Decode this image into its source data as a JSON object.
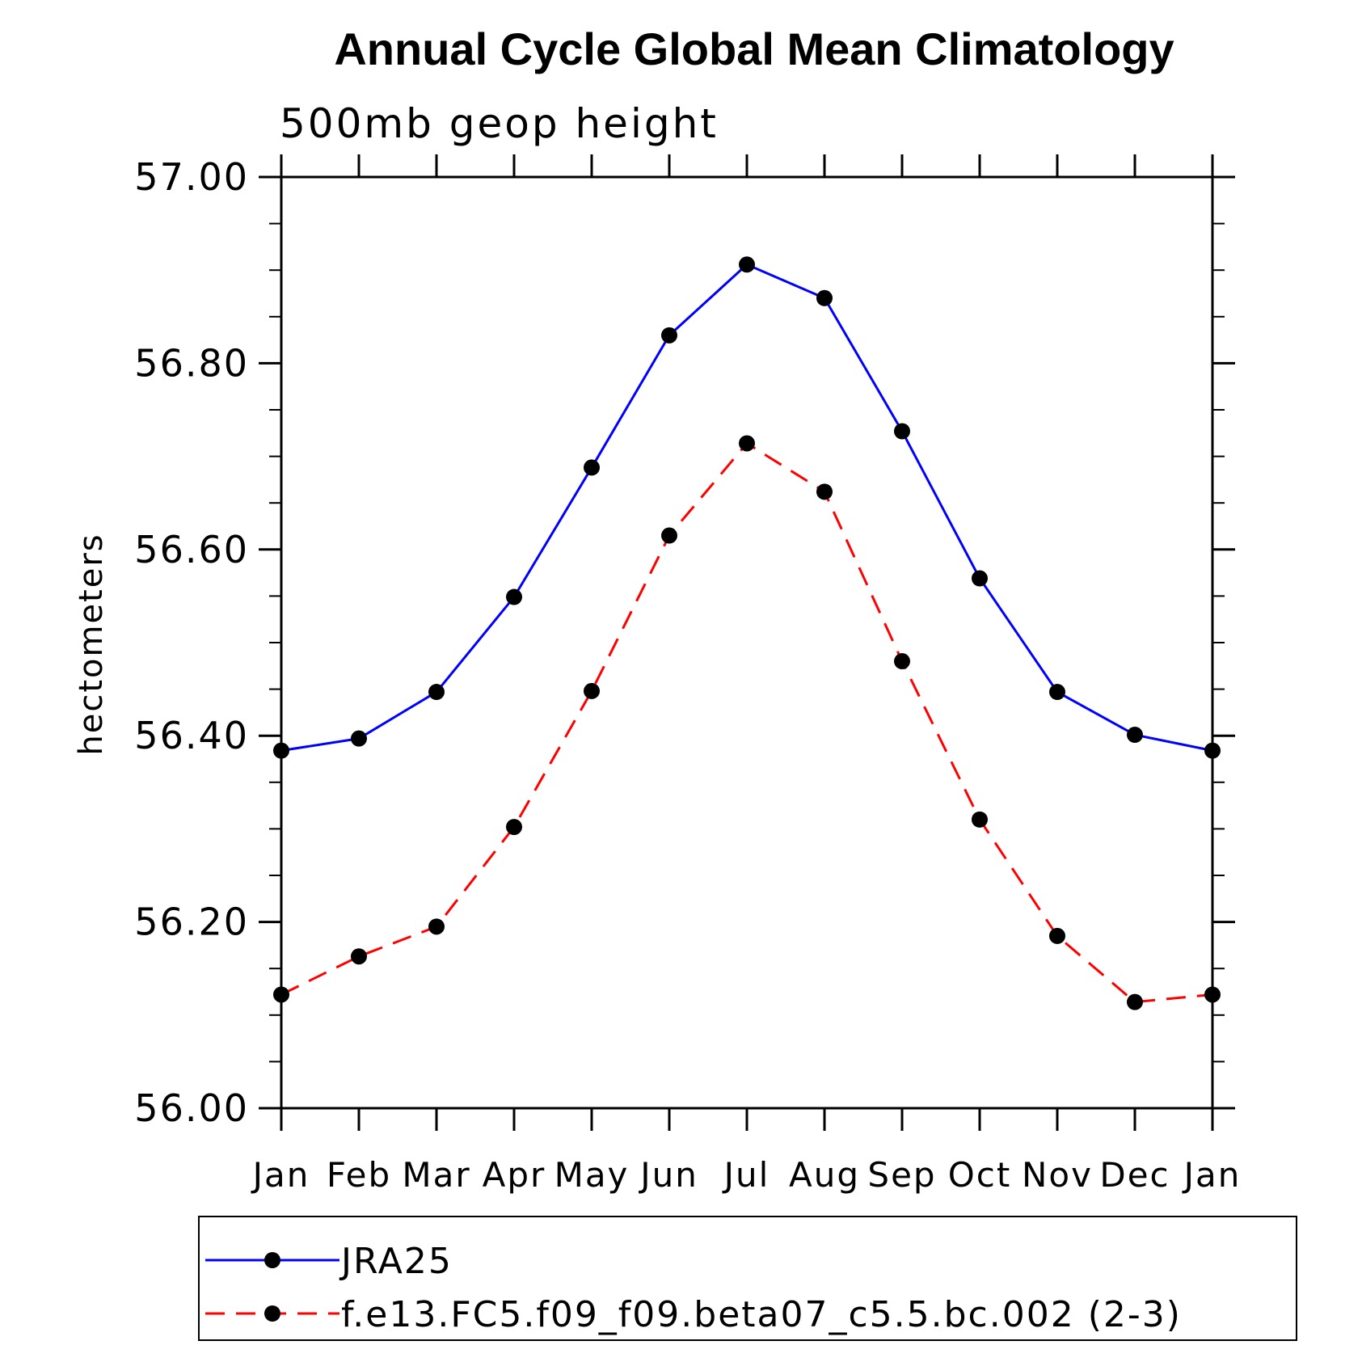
{
  "chart_data": {
    "type": "line",
    "title": "Annual Cycle Global Mean Climatology",
    "subtitle": "500mb geop height",
    "ylabel": "hectometers",
    "xlabel": "",
    "categories": [
      "Jan",
      "Feb",
      "Mar",
      "Apr",
      "May",
      "Jun",
      "Jul",
      "Aug",
      "Sep",
      "Oct",
      "Nov",
      "Dec",
      "Jan"
    ],
    "ylim": [
      56.0,
      57.0
    ],
    "yticks": [
      "56.00",
      "56.20",
      "56.40",
      "56.60",
      "56.80",
      "57.00"
    ],
    "grid": false,
    "legend_position": "bottom",
    "series": [
      {
        "name": "JRA25",
        "color": "#0000ff",
        "dash": "solid",
        "values": [
          56.384,
          56.397,
          56.447,
          56.549,
          56.688,
          56.83,
          56.906,
          56.87,
          56.727,
          56.569,
          56.447,
          56.401,
          56.384
        ]
      },
      {
        "name": "f.e13.FC5.f09_f09.beta07_c5.5.bc.002 (2-3)",
        "color": "#ff0000",
        "dash": "dashed",
        "values": [
          56.122,
          56.163,
          56.195,
          56.302,
          56.448,
          56.615,
          56.714,
          56.662,
          56.48,
          56.31,
          56.185,
          56.114,
          56.122
        ]
      }
    ]
  }
}
